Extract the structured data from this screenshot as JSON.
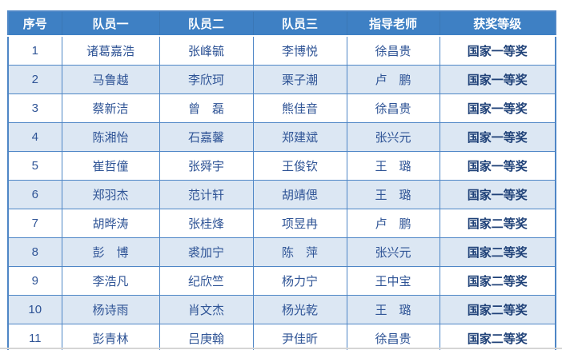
{
  "table": {
    "headers": [
      "序号",
      "队员一",
      "队员二",
      "队员三",
      "指导老师",
      "获奖等级"
    ],
    "rows": [
      [
        "1",
        "诸葛嘉浩",
        "张峰毓",
        "李博悦",
        "徐昌贵",
        "国家一等奖"
      ],
      [
        "2",
        "马鲁越",
        "李欣珂",
        "栗子潮",
        "卢　鹏",
        "国家一等奖"
      ],
      [
        "3",
        "蔡新洁",
        "曾　磊",
        "熊佳音",
        "徐昌贵",
        "国家一等奖"
      ],
      [
        "4",
        "陈湘怡",
        "石嘉馨",
        "郑建斌",
        "张兴元",
        "国家一等奖"
      ],
      [
        "5",
        "崔哲僮",
        "张舜宇",
        "王俊钦",
        "王　璐",
        "国家一等奖"
      ],
      [
        "6",
        "郑羽杰",
        "范计轩",
        "胡靖偲",
        "王　璐",
        "国家一等奖"
      ],
      [
        "7",
        "胡晔涛",
        "张桂烽",
        "项昱冉",
        "卢　鹏",
        "国家二等奖"
      ],
      [
        "8",
        "彭　博",
        "裘加宁",
        "陈　萍",
        "张兴元",
        "国家二等奖"
      ],
      [
        "9",
        "李浩凡",
        "纪欣竺",
        "杨力宁",
        "王中宝",
        "国家二等奖"
      ],
      [
        "10",
        "杨诗雨",
        "肖文杰",
        "杨光乾",
        "王　璐",
        "国家二等奖"
      ],
      [
        "11",
        "彭青林",
        "吕庚翰",
        "尹佳昕",
        "徐昌贵",
        "国家二等奖"
      ]
    ],
    "colors": {
      "header_bg": "#3E80C4",
      "header_text": "#FFFFFF",
      "row_alt_bg": "#DCE7F3",
      "border": "#4E86C6",
      "body_text": "#2F5496",
      "award_text": "#1F4178"
    }
  }
}
